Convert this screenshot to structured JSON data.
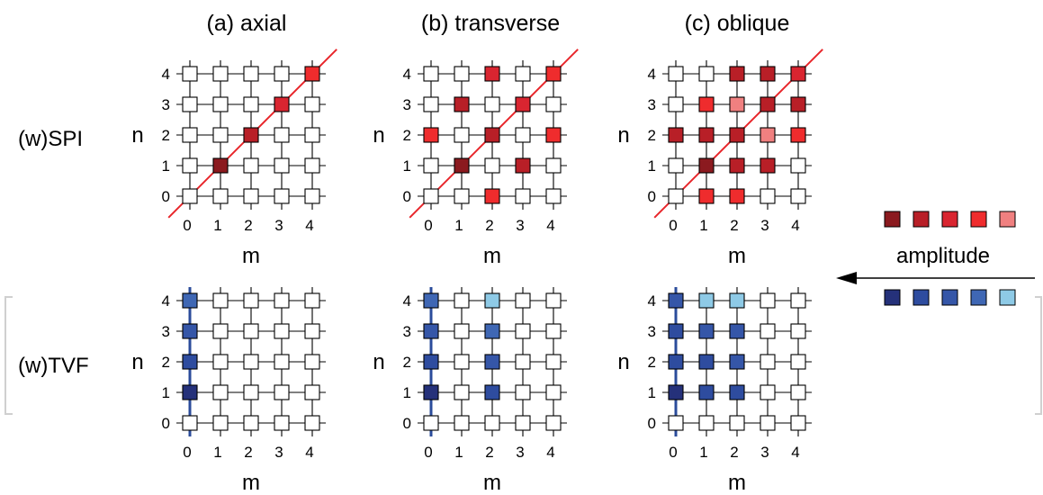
{
  "colors": {
    "empty": "#ffffff",
    "red": [
      "#8b1a1f",
      "#b81f27",
      "#d92530",
      "#ef2c2d",
      "#f08080"
    ],
    "blue": [
      "#25317a",
      "#2e4c9f",
      "#3556a8",
      "#3f67b4",
      "#8ecae6"
    ],
    "spi_line": "#e8262b",
    "tvf_line": "#2b4c9b",
    "bracket": "#d0d0d0",
    "arrow": "#000000"
  },
  "columns": [
    {
      "title": "(a) axial"
    },
    {
      "title": "(b) transverse"
    },
    {
      "title": "(c) oblique"
    }
  ],
  "rows": [
    {
      "label": "(w)SPI",
      "line": "diagonal"
    },
    {
      "label": "(w)TVF",
      "line": "vertical"
    }
  ],
  "axis": {
    "n_label": "n",
    "m_label": "m",
    "ticks": [
      "0",
      "1",
      "2",
      "3",
      "4"
    ]
  },
  "legend": {
    "label": "amplitude",
    "red_swatches": [
      0,
      1,
      2,
      3,
      4
    ],
    "blue_swatches": [
      0,
      1,
      2,
      3,
      4
    ]
  },
  "panels": [
    {
      "row": 0,
      "col": 0,
      "cells": [
        {
          "m": 1,
          "n": 1,
          "shade": 0
        },
        {
          "m": 2,
          "n": 2,
          "shade": 1
        },
        {
          "m": 3,
          "n": 3,
          "shade": 2
        },
        {
          "m": 4,
          "n": 4,
          "shade": 3
        }
      ]
    },
    {
      "row": 0,
      "col": 1,
      "cells": [
        {
          "m": 1,
          "n": 1,
          "shade": 0
        },
        {
          "m": 2,
          "n": 2,
          "shade": 1
        },
        {
          "m": 3,
          "n": 3,
          "shade": 2
        },
        {
          "m": 4,
          "n": 4,
          "shade": 3
        },
        {
          "m": 0,
          "n": 2,
          "shade": 3
        },
        {
          "m": 1,
          "n": 3,
          "shade": 1
        },
        {
          "m": 2,
          "n": 4,
          "shade": 2
        },
        {
          "m": 2,
          "n": 0,
          "shade": 3
        },
        {
          "m": 3,
          "n": 1,
          "shade": 1
        },
        {
          "m": 4,
          "n": 2,
          "shade": 3
        }
      ]
    },
    {
      "row": 0,
      "col": 2,
      "cells": [
        {
          "m": 1,
          "n": 1,
          "shade": 0
        },
        {
          "m": 2,
          "n": 2,
          "shade": 1
        },
        {
          "m": 3,
          "n": 3,
          "shade": 1
        },
        {
          "m": 4,
          "n": 4,
          "shade": 2
        },
        {
          "m": 0,
          "n": 2,
          "shade": 1
        },
        {
          "m": 1,
          "n": 2,
          "shade": 1
        },
        {
          "m": 1,
          "n": 3,
          "shade": 3
        },
        {
          "m": 2,
          "n": 3,
          "shade": 4
        },
        {
          "m": 2,
          "n": 4,
          "shade": 1
        },
        {
          "m": 3,
          "n": 4,
          "shade": 1
        },
        {
          "m": 4,
          "n": 3,
          "shade": 1
        },
        {
          "m": 3,
          "n": 2,
          "shade": 4
        },
        {
          "m": 4,
          "n": 2,
          "shade": 3
        },
        {
          "m": 2,
          "n": 1,
          "shade": 1
        },
        {
          "m": 3,
          "n": 1,
          "shade": 1
        },
        {
          "m": 1,
          "n": 0,
          "shade": 3
        },
        {
          "m": 2,
          "n": 0,
          "shade": 3
        }
      ]
    },
    {
      "row": 1,
      "col": 0,
      "cells": [
        {
          "m": 0,
          "n": 1,
          "shade": 0
        },
        {
          "m": 0,
          "n": 2,
          "shade": 1
        },
        {
          "m": 0,
          "n": 3,
          "shade": 2
        },
        {
          "m": 0,
          "n": 4,
          "shade": 3
        }
      ]
    },
    {
      "row": 1,
      "col": 1,
      "cells": [
        {
          "m": 0,
          "n": 1,
          "shade": 0
        },
        {
          "m": 0,
          "n": 2,
          "shade": 1
        },
        {
          "m": 0,
          "n": 3,
          "shade": 2
        },
        {
          "m": 0,
          "n": 4,
          "shade": 3
        },
        {
          "m": 2,
          "n": 1,
          "shade": 1
        },
        {
          "m": 2,
          "n": 2,
          "shade": 2
        },
        {
          "m": 2,
          "n": 3,
          "shade": 3
        },
        {
          "m": 2,
          "n": 4,
          "shade": 4
        }
      ]
    },
    {
      "row": 1,
      "col": 2,
      "cells": [
        {
          "m": 0,
          "n": 1,
          "shade": 0
        },
        {
          "m": 0,
          "n": 2,
          "shade": 1
        },
        {
          "m": 0,
          "n": 3,
          "shade": 1
        },
        {
          "m": 0,
          "n": 4,
          "shade": 2
        },
        {
          "m": 1,
          "n": 1,
          "shade": 1
        },
        {
          "m": 1,
          "n": 2,
          "shade": 1
        },
        {
          "m": 1,
          "n": 3,
          "shade": 2
        },
        {
          "m": 1,
          "n": 4,
          "shade": 4
        },
        {
          "m": 2,
          "n": 1,
          "shade": 1
        },
        {
          "m": 2,
          "n": 2,
          "shade": 2
        },
        {
          "m": 2,
          "n": 3,
          "shade": 2
        },
        {
          "m": 2,
          "n": 4,
          "shade": 4
        }
      ]
    }
  ]
}
